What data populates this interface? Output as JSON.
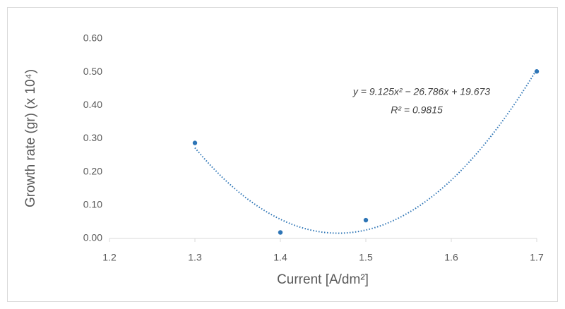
{
  "chart_data": {
    "type": "scatter",
    "x_label": "Current [A/dm²]",
    "y_label": "Growth rate (gr) (x 10⁴)",
    "x": [
      1.3,
      1.4,
      1.5,
      1.7
    ],
    "values": [
      0.287,
      0.018,
      0.055,
      0.502
    ],
    "color": "#2e75b6",
    "xlim": [
      1.2,
      1.7
    ],
    "xticks": [
      1.2,
      1.3,
      1.4,
      1.5,
      1.6,
      1.7
    ],
    "ylim": [
      0,
      0.6
    ],
    "yticks": [
      {
        "value": 0,
        "label": "0.00"
      },
      {
        "value": 0.1,
        "label": "0.10"
      },
      {
        "value": 0.2,
        "label": "0.20"
      },
      {
        "value": 0.3,
        "label": "0.30"
      },
      {
        "value": 0.4,
        "label": "0.40"
      },
      {
        "value": 0.5,
        "label": "0.50"
      },
      {
        "value": 0.6,
        "label": "0.60"
      }
    ],
    "grid": false,
    "trendline": {
      "type": "polynomial",
      "coefficients": [
        9.125,
        -26.786,
        19.673
      ],
      "equation": "y = 9.125x² − 26.786x + 19.673",
      "r_squared_label": "R² = 0.9815"
    }
  }
}
